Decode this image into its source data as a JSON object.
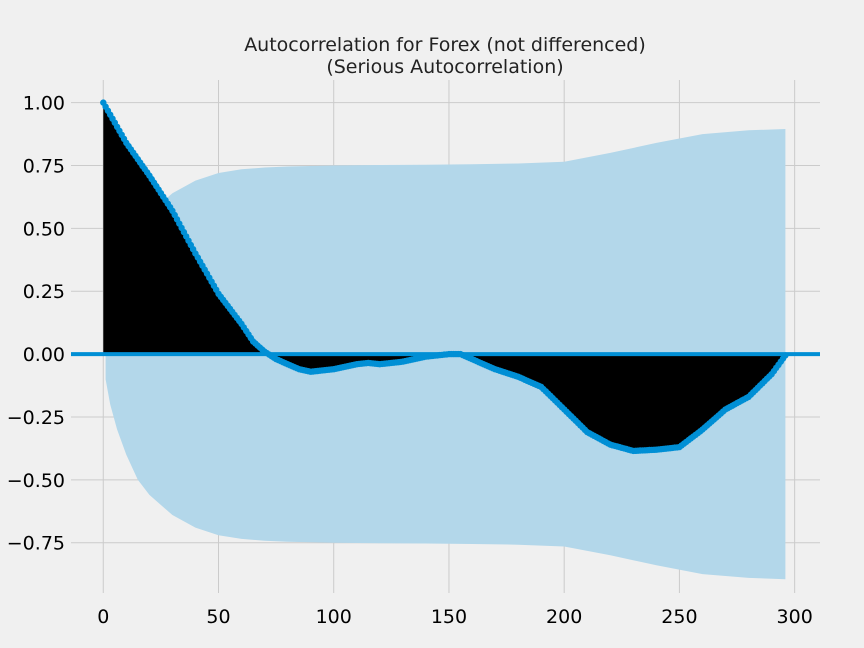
{
  "chart_data": {
    "type": "line",
    "title": "Autocorrelation for Forex (not differenced)",
    "subtitle": "(Serious Autocorrelation)",
    "xlabel": "",
    "ylabel": "",
    "xlim": [
      -14,
      311
    ],
    "ylim": [
      -0.95,
      1.09
    ],
    "xticks": [
      0,
      50,
      100,
      150,
      200,
      250,
      300
    ],
    "xtick_labels": [
      "0",
      "50",
      "100",
      "150",
      "200",
      "250",
      "300"
    ],
    "yticks": [
      1.0,
      0.75,
      0.5,
      0.25,
      0.0,
      -0.25,
      -0.5,
      -0.75
    ],
    "ytick_labels": [
      "1.00",
      "0.75",
      "0.50",
      "0.25",
      "0.00",
      "−0.25",
      "−0.50",
      "−0.75"
    ],
    "grid": true,
    "colors": {
      "background": "#f0f0f0",
      "grid": "#cbcbcb",
      "acf_line": "#008fd5",
      "fill": "#000000",
      "confidence_band": "#b3d7ea",
      "zero_line": "#008fd5"
    },
    "confidence_band": {
      "x": [
        1,
        3,
        6,
        10,
        15,
        20,
        25,
        30,
        40,
        50,
        60,
        70,
        80,
        100,
        120,
        140,
        160,
        180,
        200,
        220,
        240,
        260,
        280,
        296
      ],
      "upper": [
        0.1,
        0.2,
        0.3,
        0.4,
        0.5,
        0.56,
        0.6,
        0.64,
        0.69,
        0.72,
        0.735,
        0.742,
        0.746,
        0.75,
        0.752,
        0.753,
        0.755,
        0.758,
        0.765,
        0.8,
        0.84,
        0.875,
        0.89,
        0.895
      ],
      "lower": [
        -0.1,
        -0.2,
        -0.3,
        -0.4,
        -0.5,
        -0.56,
        -0.6,
        -0.64,
        -0.69,
        -0.72,
        -0.735,
        -0.742,
        -0.746,
        -0.75,
        -0.752,
        -0.753,
        -0.755,
        -0.758,
        -0.765,
        -0.8,
        -0.84,
        -0.875,
        -0.89,
        -0.895
      ]
    },
    "acf_keypoints": {
      "lags": [
        0,
        5,
        10,
        20,
        30,
        40,
        50,
        60,
        65,
        70,
        75,
        80,
        85,
        90,
        100,
        110,
        115,
        120,
        130,
        140,
        150,
        155,
        160,
        170,
        180,
        190,
        200,
        210,
        220,
        230,
        240,
        250,
        260,
        270,
        280,
        290,
        296
      ],
      "values": [
        1.0,
        0.92,
        0.84,
        0.71,
        0.57,
        0.4,
        0.24,
        0.12,
        0.05,
        0.01,
        -0.02,
        -0.04,
        -0.06,
        -0.07,
        -0.06,
        -0.04,
        -0.035,
        -0.04,
        -0.03,
        -0.01,
        0.0,
        0.0,
        -0.02,
        -0.06,
        -0.09,
        -0.13,
        -0.22,
        -0.31,
        -0.36,
        -0.385,
        -0.38,
        -0.37,
        -0.3,
        -0.22,
        -0.17,
        -0.08,
        -0.005
      ]
    },
    "n_lags": 296,
    "series": [
      {
        "values_ref": "acf_keypoints"
      }
    ]
  }
}
